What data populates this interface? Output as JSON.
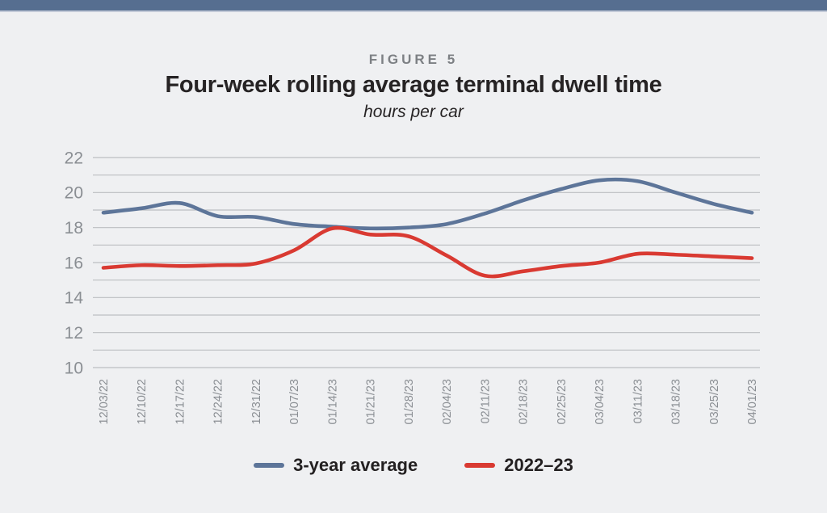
{
  "page": {
    "figure_label": "FIGURE 5",
    "title": "Four-week rolling average terminal dwell time",
    "subtitle": "hours per car"
  },
  "colors": {
    "topbar": "#566e90",
    "background": "#eff0f2",
    "gridline": "#bcbec1",
    "axis_text": "#8a8e93",
    "figure_label_text": "#7d8084",
    "title_text": "#262324",
    "legend_text": "#232021",
    "series_blue": "#5d7599",
    "series_red": "#d93a32"
  },
  "chart_data": {
    "type": "line",
    "title": "Four-week rolling average terminal dwell time",
    "subtitle": "hours per car",
    "x": [
      "12/03/22",
      "12/10/22",
      "12/17/22",
      "12/24/22",
      "12/31/22",
      "01/07/23",
      "01/14/23",
      "01/21/23",
      "01/28/23",
      "02/04/23",
      "02/11/23",
      "02/18/23",
      "02/25/23",
      "03/04/23",
      "03/11/23",
      "03/18/23",
      "03/25/23",
      "04/01/23"
    ],
    "series": [
      {
        "name": "3-year average",
        "color": "#5d7599",
        "values": [
          18.85,
          19.1,
          19.4,
          18.65,
          18.6,
          18.2,
          18.05,
          17.95,
          18.0,
          18.2,
          18.8,
          19.55,
          20.2,
          20.7,
          20.65,
          20.0,
          19.35,
          18.85
        ]
      },
      {
        "name": "2022–23",
        "color": "#d93a32",
        "values": [
          15.7,
          15.85,
          15.8,
          15.85,
          15.95,
          16.7,
          17.95,
          17.6,
          17.5,
          16.4,
          15.25,
          15.5,
          15.8,
          16.0,
          16.5,
          16.45,
          16.35,
          16.25
        ]
      }
    ],
    "ylim": [
      10,
      22
    ],
    "yticks": [
      10,
      12,
      14,
      16,
      18,
      20,
      22
    ],
    "grid_step": 1,
    "grid": "horizontal",
    "legend_position": "bottom"
  }
}
